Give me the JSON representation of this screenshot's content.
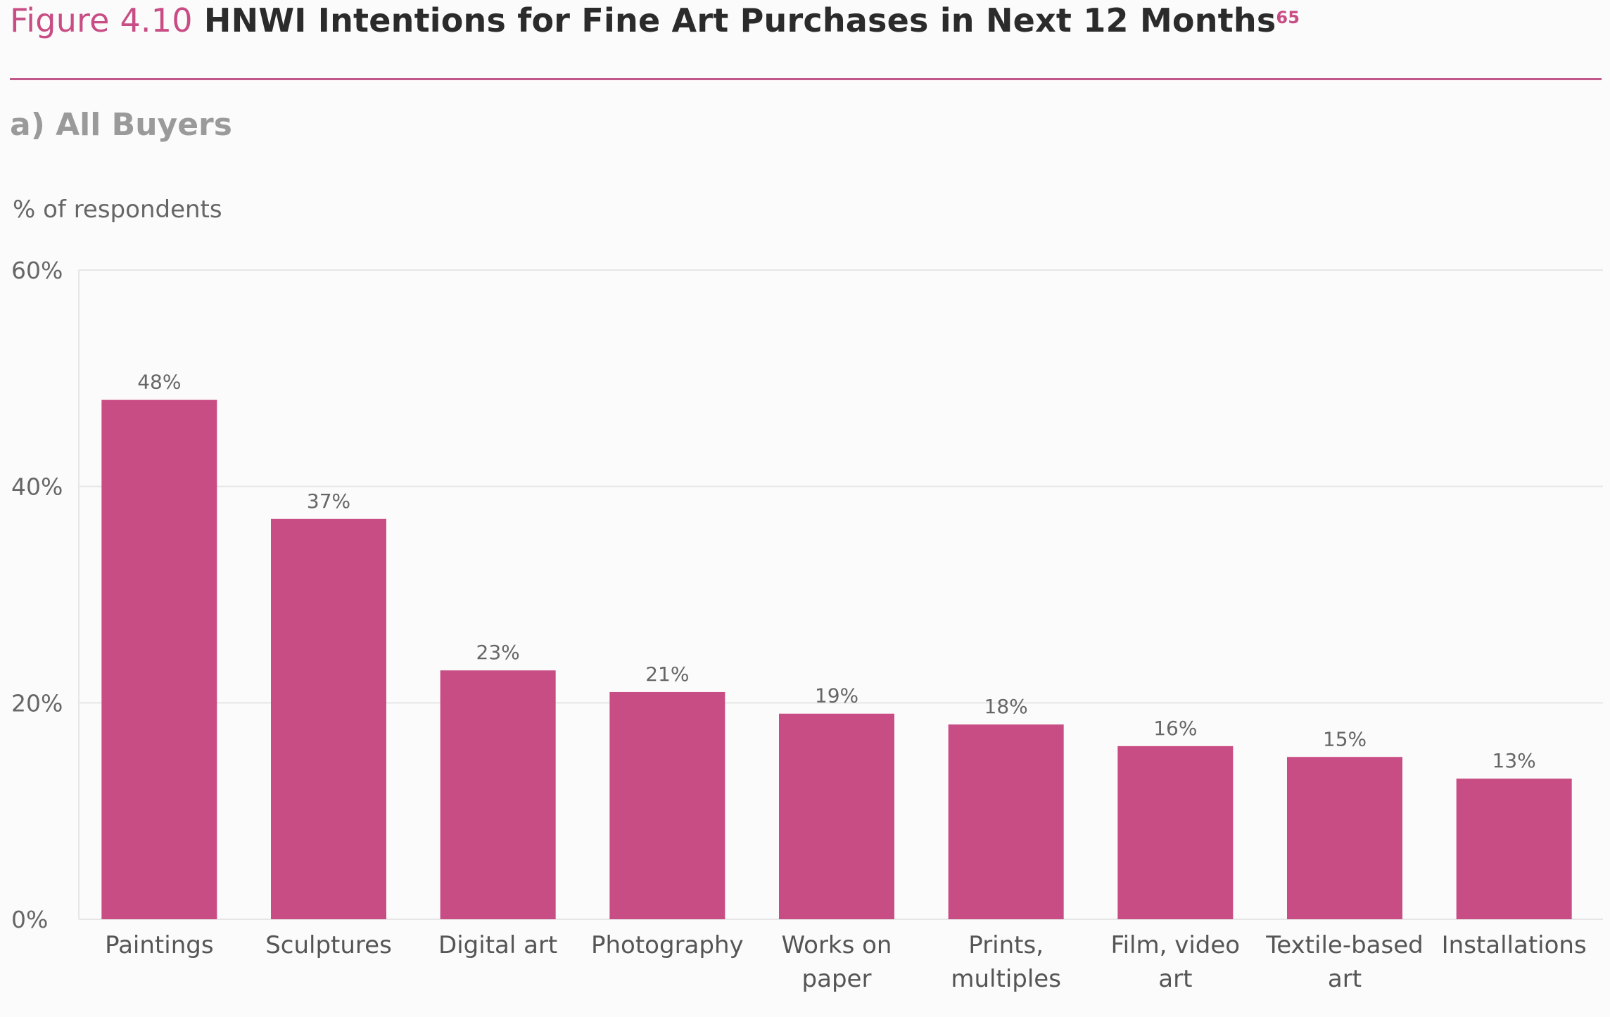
{
  "header": {
    "figure_label": "Figure 4.10",
    "title": "HNWI Intentions for Fine Art Purchases in Next 12 Months",
    "superscript": "65",
    "subtitle": "a) All Buyers"
  },
  "colors": {
    "accent": "#c94d85",
    "bar": "#c94d85",
    "rule": "#c25889",
    "grid": "#e6e6e6"
  },
  "chart_data": {
    "type": "bar",
    "title": "HNWI Intentions for Fine Art Purchases in Next 12 Months",
    "subtitle": "a) All Buyers",
    "ylabel": "% of respondents",
    "xlabel": "",
    "ylim": [
      0,
      60
    ],
    "yticks": [
      0,
      20,
      40,
      60
    ],
    "ytick_labels": [
      "0%",
      "20%",
      "40%",
      "60%"
    ],
    "grid": true,
    "categories": [
      [
        "Paintings"
      ],
      [
        "Sculptures"
      ],
      [
        "Digital art"
      ],
      [
        "Photography"
      ],
      [
        "Works on",
        "paper"
      ],
      [
        "Prints,",
        "multiples"
      ],
      [
        "Film, video",
        "art"
      ],
      [
        "Textile-based",
        "art"
      ],
      [
        "Installations"
      ]
    ],
    "values": [
      48,
      37,
      23,
      21,
      19,
      18,
      16,
      15,
      13
    ],
    "data_labels": [
      "48%",
      "37%",
      "23%",
      "21%",
      "19%",
      "18%",
      "16%",
      "15%",
      "13%"
    ]
  }
}
